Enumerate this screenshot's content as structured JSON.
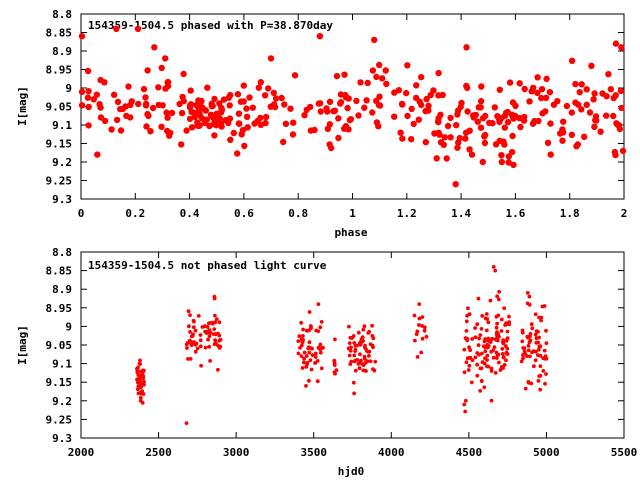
{
  "colors": {
    "points": "#ff0000",
    "axes": "#000000",
    "background": "#ffffff"
  },
  "chart_data": [
    {
      "type": "scatter",
      "title": "154359-1504.5 phased with P=38.870day",
      "xlabel": "phase",
      "ylabel": "I[mag]",
      "xlim": [
        0,
        2
      ],
      "ylim": [
        8.8,
        9.3
      ],
      "y_inverted": true,
      "grid": false,
      "x_ticks": [
        "0",
        "0.2",
        "0.4",
        "0.6",
        "0.8",
        "1",
        "1.2",
        "1.4",
        "1.6",
        "1.8",
        "2"
      ],
      "y_ticks": [
        "8.8",
        "8.85",
        "8.9",
        "8.95",
        "9",
        "9.05",
        "9.1",
        "9.15",
        "9.2",
        "9.25",
        "9.3"
      ],
      "marker": "filled-circle-large",
      "clusters": [
        {
          "x0": 0.0,
          "x1": 0.12,
          "ymean": 9.04,
          "ysd": 0.045,
          "n": 16
        },
        {
          "x0": 0.12,
          "x1": 0.4,
          "ymean": 9.06,
          "ysd": 0.05,
          "n": 45
        },
        {
          "x0": 0.4,
          "x1": 0.52,
          "ymean": 9.07,
          "ysd": 0.025,
          "n": 55
        },
        {
          "x0": 0.52,
          "x1": 1.0,
          "ymean": 9.06,
          "ysd": 0.05,
          "n": 80
        },
        {
          "x0": 1.0,
          "x1": 1.3,
          "ymean": 9.05,
          "ysd": 0.05,
          "n": 45
        },
        {
          "x0": 1.3,
          "x1": 1.6,
          "ymean": 9.09,
          "ysd": 0.055,
          "n": 75
        },
        {
          "x0": 1.6,
          "x1": 2.0,
          "ymean": 9.06,
          "ysd": 0.055,
          "n": 70
        }
      ],
      "points": [
        {
          "x": 0.0,
          "y": 8.86
        },
        {
          "x": 0.13,
          "y": 8.84
        },
        {
          "x": 0.21,
          "y": 8.84
        },
        {
          "x": 0.88,
          "y": 8.86
        },
        {
          "x": 1.08,
          "y": 8.87
        },
        {
          "x": 1.42,
          "y": 8.89
        },
        {
          "x": 1.97,
          "y": 8.88
        },
        {
          "x": 1.99,
          "y": 8.89
        },
        {
          "x": 0.06,
          "y": 9.18
        },
        {
          "x": 1.38,
          "y": 9.26
        },
        {
          "x": 1.48,
          "y": 9.2
        },
        {
          "x": 1.44,
          "y": 9.18
        },
        {
          "x": 1.55,
          "y": 9.2
        },
        {
          "x": 1.73,
          "y": 9.18
        },
        {
          "x": 2.0,
          "y": 9.17
        },
        {
          "x": 0.55,
          "y": 9.14
        },
        {
          "x": 0.7,
          "y": 8.92
        },
        {
          "x": 0.31,
          "y": 8.92
        },
        {
          "x": 0.27,
          "y": 8.89
        },
        {
          "x": 1.88,
          "y": 8.94
        },
        {
          "x": 1.31,
          "y": 9.19
        }
      ]
    },
    {
      "type": "scatter",
      "title": "154359-1504.5 not phased light curve",
      "xlabel": "hjd0",
      "ylabel": "I[mag]",
      "xlim": [
        2000,
        5500
      ],
      "ylim": [
        8.8,
        9.3
      ],
      "y_inverted": true,
      "grid": false,
      "x_ticks": [
        "2000",
        "2500",
        "3000",
        "3500",
        "4000",
        "4500",
        "5000",
        "5500"
      ],
      "y_ticks": [
        "8.8",
        "8.85",
        "8.9",
        "8.95",
        "9",
        "9.05",
        "9.1",
        "9.15",
        "9.2",
        "9.25",
        "9.3"
      ],
      "marker": "filled-circle-small",
      "clusters": [
        {
          "x0": 2360,
          "x1": 2410,
          "ymean": 9.14,
          "ysd": 0.025,
          "n": 45
        },
        {
          "x0": 2680,
          "x1": 2900,
          "ymean": 9.03,
          "ysd": 0.035,
          "n": 70
        },
        {
          "x0": 3400,
          "x1": 3560,
          "ymean": 9.06,
          "ysd": 0.035,
          "n": 55
        },
        {
          "x0": 3630,
          "x1": 3650,
          "ymean": 9.11,
          "ysd": 0.02,
          "n": 8
        },
        {
          "x0": 3720,
          "x1": 3900,
          "ymean": 9.06,
          "ysd": 0.035,
          "n": 65
        },
        {
          "x0": 4140,
          "x1": 4230,
          "ymean": 9.01,
          "ysd": 0.03,
          "n": 14
        },
        {
          "x0": 4470,
          "x1": 4760,
          "ymean": 9.05,
          "ysd": 0.055,
          "n": 130
        },
        {
          "x0": 4840,
          "x1": 5000,
          "ymean": 9.07,
          "ysd": 0.05,
          "n": 65
        }
      ],
      "points": [
        {
          "x": 2680,
          "y": 9.26
        },
        {
          "x": 2385,
          "y": 9.2
        },
        {
          "x": 2860,
          "y": 8.92
        },
        {
          "x": 3530,
          "y": 8.94
        },
        {
          "x": 4180,
          "y": 8.94
        },
        {
          "x": 4470,
          "y": 9.21
        },
        {
          "x": 4480,
          "y": 9.2
        },
        {
          "x": 4660,
          "y": 8.84
        },
        {
          "x": 4670,
          "y": 8.85
        },
        {
          "x": 4880,
          "y": 8.91
        },
        {
          "x": 4890,
          "y": 8.92
        },
        {
          "x": 3760,
          "y": 9.18
        },
        {
          "x": 3450,
          "y": 9.16
        },
        {
          "x": 4960,
          "y": 9.17
        }
      ]
    }
  ]
}
